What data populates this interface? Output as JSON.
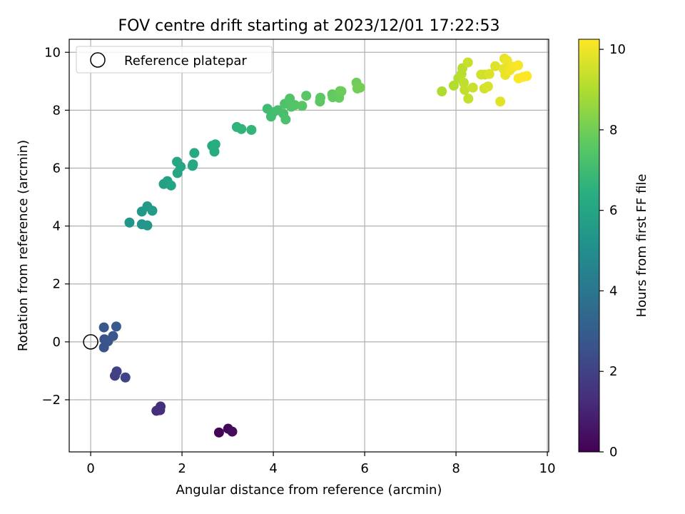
{
  "chart_data": {
    "type": "scatter",
    "title": "FOV centre drift starting at 2023/12/01 17:22:53",
    "xlabel": "Angular distance from reference (arcmin)",
    "ylabel": "Rotation from reference (arcmin)",
    "xlim": [
      -0.47,
      10.03
    ],
    "ylim": [
      -3.8,
      10.45
    ],
    "x_ticks": [
      0,
      2,
      4,
      6,
      8,
      10
    ],
    "y_ticks": [
      -2,
      0,
      2,
      4,
      6,
      8,
      10
    ],
    "x_tick_labels": [
      "0",
      "2",
      "4",
      "6",
      "8",
      "10"
    ],
    "y_tick_labels": [
      "−2",
      "0",
      "2",
      "4",
      "6",
      "8",
      "10"
    ],
    "grid": true,
    "legend": {
      "placement": "top-left",
      "entries": [
        "Reference platepar"
      ]
    },
    "reference_point": {
      "x": 0,
      "y": 0,
      "label": "Reference platepar"
    },
    "colorbar": {
      "label": "Hours from first FF file",
      "colormap": "viridis",
      "range": [
        0,
        10.25
      ],
      "ticks": [
        0,
        2,
        4,
        6,
        8,
        10
      ],
      "tick_labels": [
        "0",
        "2",
        "4",
        "6",
        "8",
        "10"
      ]
    },
    "series": [
      {
        "points": [
          [
            2.81,
            -3.13,
            0.1
          ],
          [
            3.01,
            -3.0,
            0.2
          ],
          [
            3.1,
            -3.1,
            0.3
          ],
          [
            1.44,
            -2.38,
            1.3
          ],
          [
            1.52,
            -2.36,
            1.35
          ],
          [
            1.53,
            -2.23,
            1.4
          ],
          [
            0.53,
            -1.17,
            1.95
          ],
          [
            0.57,
            -1.02,
            2.0
          ],
          [
            0.76,
            -1.23,
            2.05
          ],
          [
            0.29,
            -0.19,
            2.6
          ],
          [
            0.3,
            0.09,
            2.65
          ],
          [
            0.38,
            0.02,
            2.7
          ],
          [
            0.49,
            0.2,
            2.75
          ],
          [
            0.29,
            0.5,
            2.8
          ],
          [
            0.56,
            0.53,
            2.85
          ],
          [
            0.85,
            4.12,
            5.3
          ],
          [
            1.12,
            4.06,
            5.35
          ],
          [
            1.24,
            4.02,
            5.4
          ],
          [
            1.12,
            4.5,
            5.45
          ],
          [
            1.24,
            4.68,
            5.5
          ],
          [
            1.35,
            4.53,
            5.55
          ],
          [
            1.6,
            5.45,
            5.8
          ],
          [
            1.68,
            5.55,
            5.85
          ],
          [
            1.76,
            5.4,
            5.9
          ],
          [
            1.9,
            5.83,
            5.95
          ],
          [
            1.97,
            6.05,
            6.0
          ],
          [
            1.89,
            6.22,
            6.05
          ],
          [
            2.23,
            6.08,
            6.1
          ],
          [
            2.24,
            6.13,
            6.15
          ],
          [
            2.27,
            6.52,
            6.2
          ],
          [
            2.66,
            6.77,
            6.25
          ],
          [
            2.71,
            6.57,
            6.3
          ],
          [
            2.73,
            6.82,
            6.35
          ],
          [
            3.2,
            7.42,
            6.6
          ],
          [
            3.3,
            7.35,
            6.65
          ],
          [
            3.52,
            7.32,
            6.7
          ],
          [
            3.87,
            8.05,
            7.0
          ],
          [
            3.95,
            7.78,
            7.05
          ],
          [
            4.0,
            7.93,
            7.1
          ],
          [
            4.1,
            8.0,
            7.15
          ],
          [
            4.22,
            7.88,
            7.2
          ],
          [
            4.27,
            7.68,
            7.25
          ],
          [
            4.25,
            8.22,
            7.3
          ],
          [
            4.36,
            8.4,
            7.35
          ],
          [
            4.39,
            8.12,
            7.4
          ],
          [
            4.47,
            8.18,
            7.45
          ],
          [
            4.63,
            8.15,
            7.5
          ],
          [
            4.72,
            8.5,
            7.55
          ],
          [
            5.02,
            8.3,
            7.6
          ],
          [
            5.03,
            8.43,
            7.65
          ],
          [
            5.29,
            8.55,
            7.7
          ],
          [
            5.3,
            8.45,
            7.75
          ],
          [
            5.44,
            8.43,
            7.8
          ],
          [
            5.46,
            8.66,
            7.85
          ],
          [
            5.49,
            8.65,
            7.9
          ],
          [
            5.82,
            8.95,
            7.95
          ],
          [
            5.84,
            8.75,
            8.0
          ],
          [
            5.9,
            8.78,
            8.05
          ],
          [
            7.69,
            8.65,
            9.0
          ],
          [
            7.95,
            8.85,
            9.05
          ],
          [
            8.05,
            9.1,
            9.1
          ],
          [
            8.12,
            9.25,
            9.15
          ],
          [
            8.14,
            9.45,
            9.2
          ],
          [
            8.17,
            8.95,
            9.25
          ],
          [
            8.19,
            8.7,
            9.3
          ],
          [
            8.27,
            8.4,
            9.35
          ],
          [
            8.26,
            9.65,
            9.4
          ],
          [
            8.37,
            8.78,
            9.45
          ],
          [
            8.55,
            9.23,
            9.5
          ],
          [
            8.63,
            9.23,
            9.55
          ],
          [
            8.62,
            8.75,
            9.6
          ],
          [
            8.7,
            8.82,
            9.65
          ],
          [
            8.73,
            9.25,
            9.7
          ],
          [
            8.86,
            9.52,
            9.75
          ],
          [
            8.97,
            8.3,
            9.8
          ],
          [
            9.04,
            9.43,
            9.85
          ],
          [
            9.06,
            9.78,
            9.9
          ],
          [
            9.08,
            9.22,
            9.95
          ],
          [
            9.12,
            9.71,
            10.0
          ],
          [
            9.18,
            9.38,
            10.05
          ],
          [
            9.26,
            9.5,
            10.1
          ],
          [
            9.36,
            9.55,
            10.15
          ],
          [
            9.37,
            9.1,
            10.2
          ],
          [
            9.47,
            9.15,
            10.22
          ],
          [
            9.55,
            9.18,
            10.25
          ]
        ]
      }
    ]
  }
}
